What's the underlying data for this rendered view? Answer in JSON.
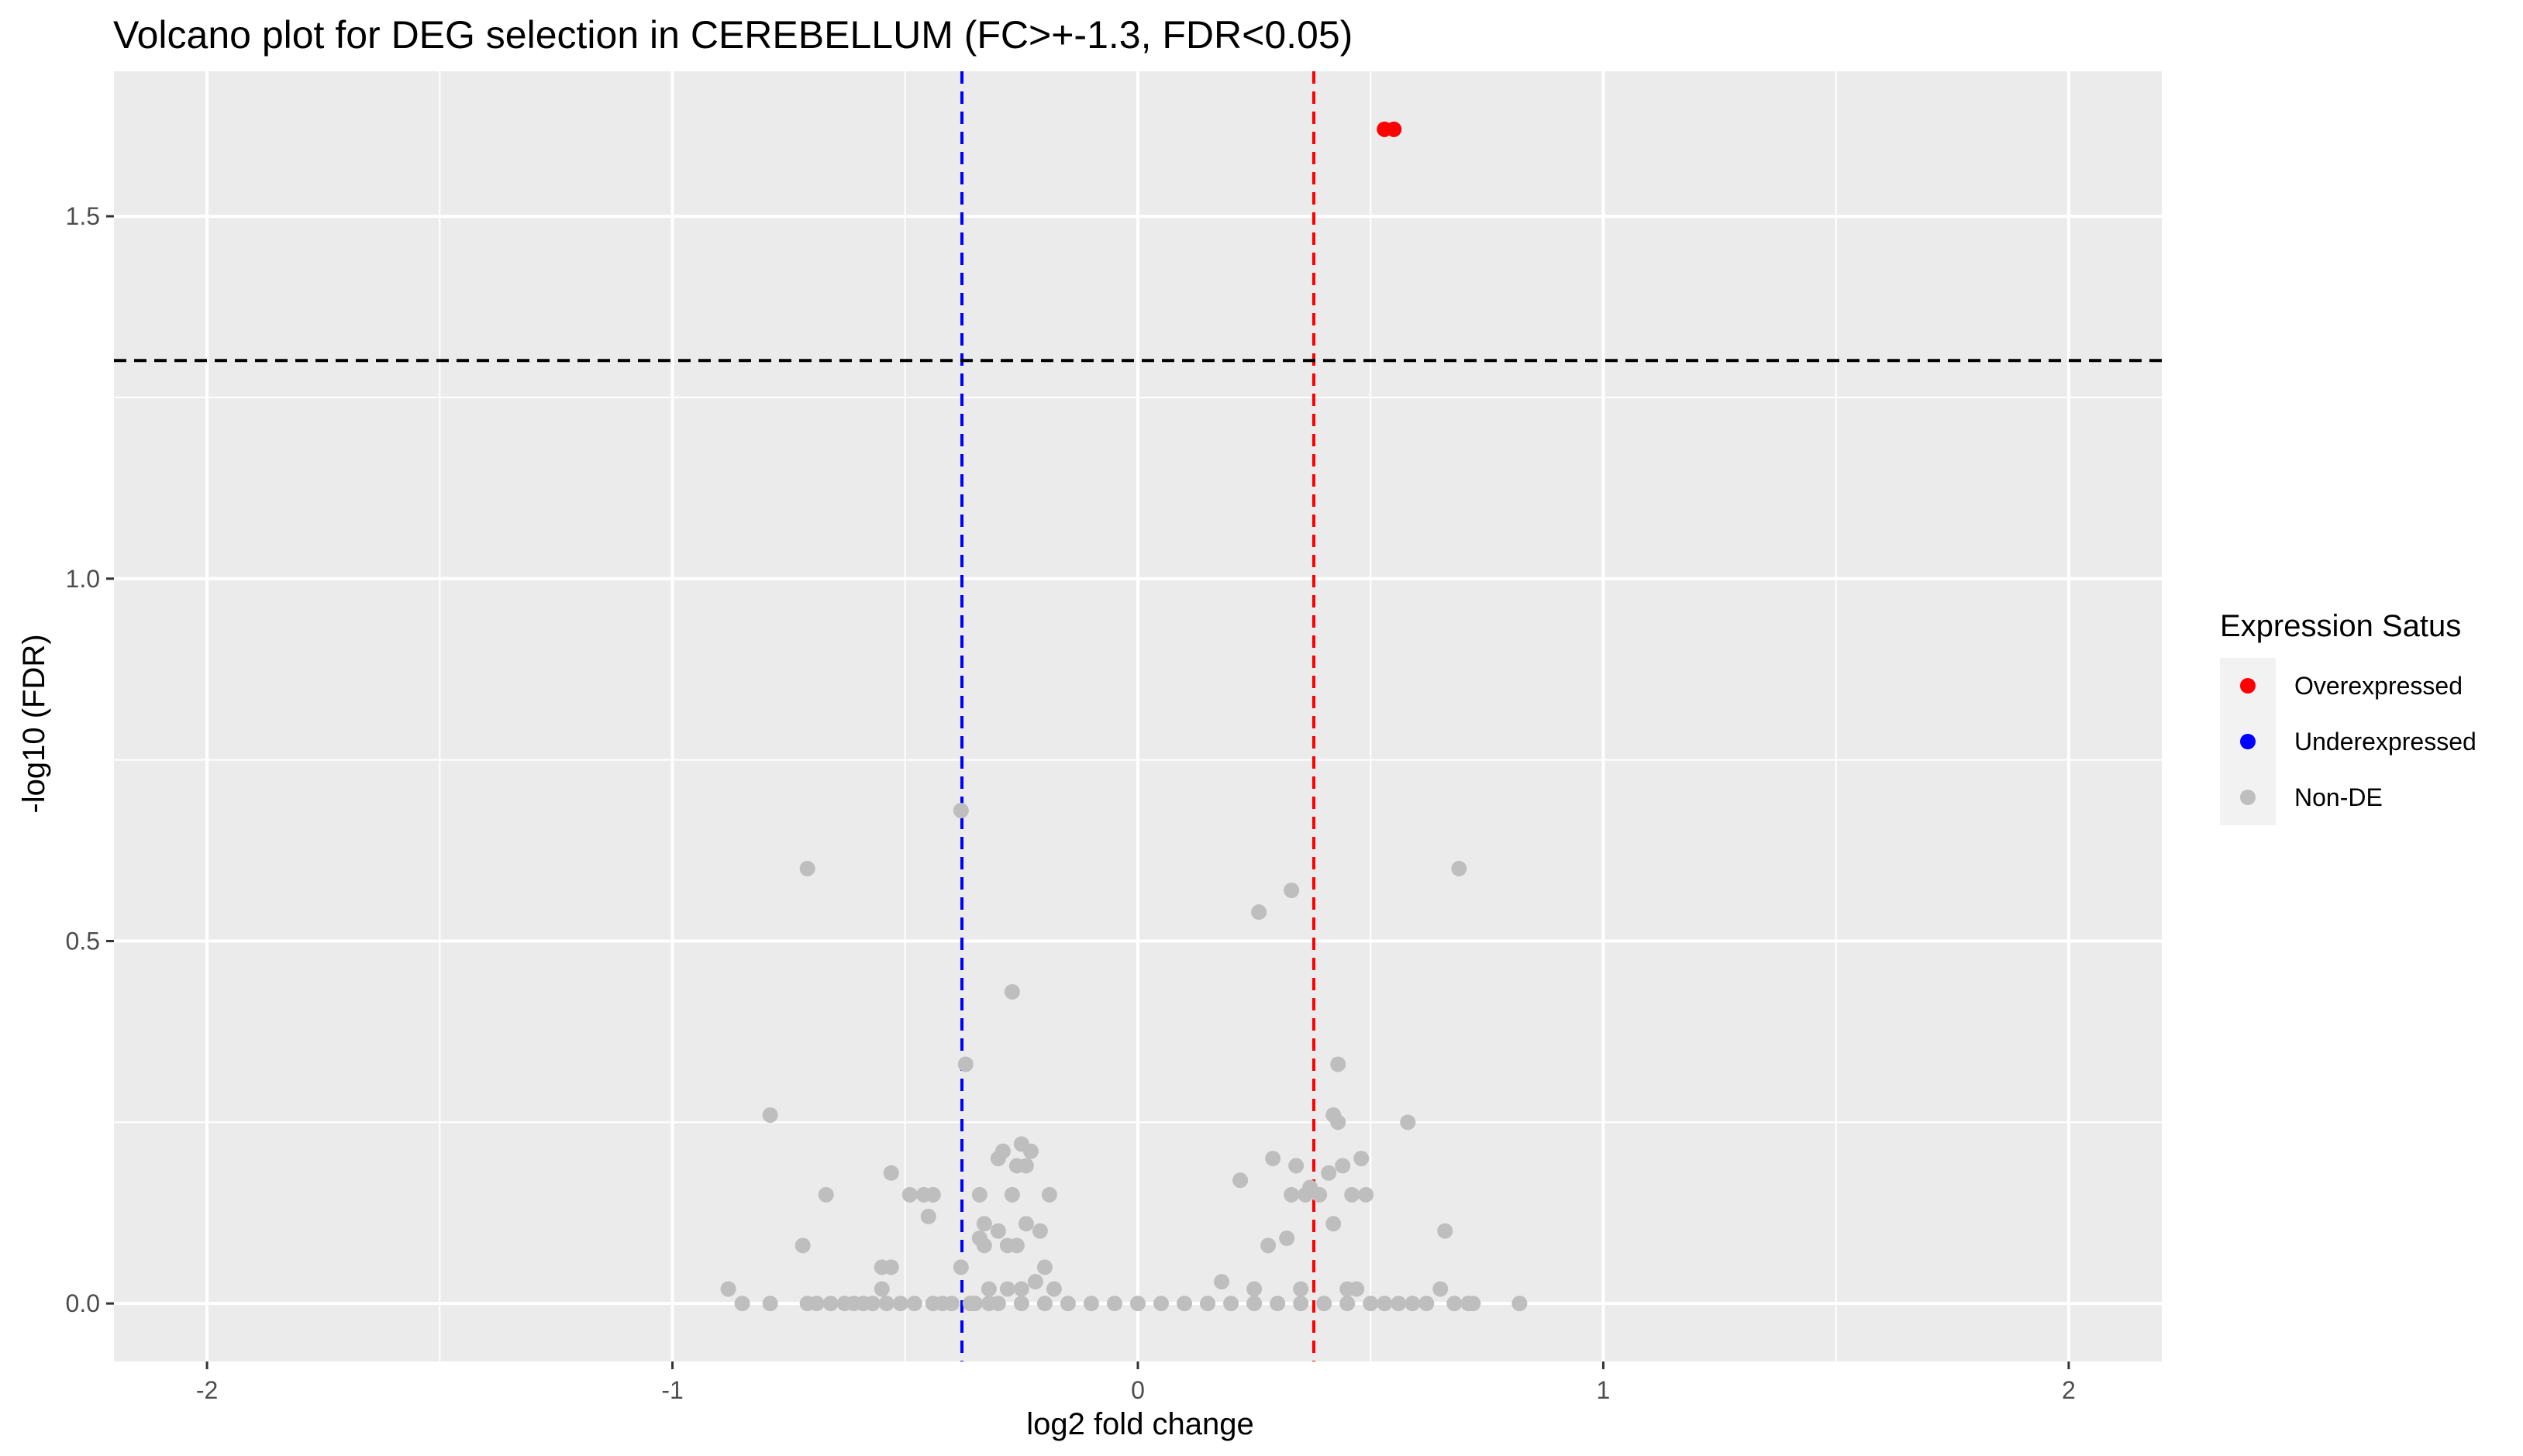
{
  "chart_data": {
    "type": "scatter",
    "title": "Volcano plot for DEG selection in CEREBELLUM (FC>+-1.3, FDR<0.05)",
    "xlabel": "log2 fold change",
    "ylabel": "-log10 (FDR)",
    "xlim": [
      -2.2,
      2.2
    ],
    "ylim": [
      -0.08,
      1.7
    ],
    "x_ticks": [
      -2,
      -1,
      0,
      1,
      2
    ],
    "x_tick_labels": [
      "-2",
      "-1",
      "0",
      "1",
      "2"
    ],
    "y_ticks": [
      0,
      0.5,
      1,
      1.5
    ],
    "y_tick_labels": [
      "0.0",
      "0.5",
      "1.0",
      "1.5"
    ],
    "grid": true,
    "legend_position": "right",
    "legend_title": "Expression Satus",
    "reference_lines": [
      {
        "orientation": "vertical",
        "value": -0.378,
        "color": "#0000ff",
        "style": "dashed"
      },
      {
        "orientation": "vertical",
        "value": 0.378,
        "color": "#ff0000",
        "style": "dashed"
      },
      {
        "orientation": "horizontal",
        "value": 1.301,
        "color": "#000000",
        "style": "dashed"
      }
    ],
    "series": [
      {
        "name": "Overexpressed",
        "color": "#ff0000",
        "points": [
          [
            0.53,
            1.62
          ],
          [
            0.55,
            1.62
          ]
        ]
      },
      {
        "name": "Underexpressed",
        "color": "#0000ff",
        "points": []
      },
      {
        "name": "Non-DE",
        "color": "#bebebe",
        "points": [
          [
            -0.88,
            0.02
          ],
          [
            -0.85,
            0
          ],
          [
            -0.79,
            0
          ],
          [
            -0.72,
            0.08
          ],
          [
            -0.71,
            0
          ],
          [
            -0.69,
            0
          ],
          [
            -0.67,
            0.15
          ],
          [
            -0.66,
            0
          ],
          [
            -0.63,
            0
          ],
          [
            -0.61,
            0
          ],
          [
            -0.59,
            0
          ],
          [
            -0.57,
            0
          ],
          [
            -0.55,
            0.05
          ],
          [
            -0.55,
            0.02
          ],
          [
            -0.54,
            0
          ],
          [
            -0.53,
            0.18
          ],
          [
            -0.53,
            0.05
          ],
          [
            -0.51,
            0
          ],
          [
            -0.49,
            0.15
          ],
          [
            -0.48,
            0
          ],
          [
            -0.46,
            0.15
          ],
          [
            -0.45,
            0.12
          ],
          [
            -0.44,
            0.15
          ],
          [
            -0.44,
            0
          ],
          [
            -0.42,
            0
          ],
          [
            -0.4,
            0
          ],
          [
            -0.38,
            0.05
          ],
          [
            -0.37,
            0.33
          ],
          [
            -0.36,
            0
          ],
          [
            -0.34,
            0.15
          ],
          [
            -0.34,
            0.09
          ],
          [
            -0.33,
            0.08
          ],
          [
            -0.33,
            0.11
          ],
          [
            -0.32,
            0.02
          ],
          [
            -0.32,
            0
          ],
          [
            -0.3,
            0.1
          ],
          [
            -0.3,
            0.2
          ],
          [
            -0.29,
            0.21
          ],
          [
            -0.28,
            0.08
          ],
          [
            -0.28,
            0.02
          ],
          [
            -0.27,
            0.43
          ],
          [
            -0.27,
            0.15
          ],
          [
            -0.26,
            0.08
          ],
          [
            -0.26,
            0.19
          ],
          [
            -0.25,
            0.22
          ],
          [
            -0.25,
            0.02
          ],
          [
            -0.24,
            0.11
          ],
          [
            -0.24,
            0.19
          ],
          [
            -0.23,
            0.21
          ],
          [
            -0.22,
            0.03
          ],
          [
            -0.21,
            0.1
          ],
          [
            -0.2,
            0.05
          ],
          [
            -0.19,
            0.15
          ],
          [
            -0.18,
            0.02
          ],
          [
            -0.38,
            0.68
          ],
          [
            -0.71,
            0.6
          ],
          [
            -0.79,
            0.26
          ],
          [
            -0.35,
            0
          ],
          [
            -0.3,
            0
          ],
          [
            -0.25,
            0
          ],
          [
            -0.2,
            0
          ],
          [
            -0.15,
            0
          ],
          [
            -0.1,
            0
          ],
          [
            -0.05,
            0
          ],
          [
            0,
            0
          ],
          [
            0.05,
            0
          ],
          [
            0.1,
            0
          ],
          [
            0.15,
            0
          ],
          [
            0.2,
            0
          ],
          [
            0.25,
            0
          ],
          [
            0.3,
            0
          ],
          [
            0.35,
            0
          ],
          [
            0.4,
            0
          ],
          [
            0.45,
            0
          ],
          [
            0.5,
            0
          ],
          [
            0.18,
            0.03
          ],
          [
            0.22,
            0.17
          ],
          [
            0.25,
            0.02
          ],
          [
            0.26,
            0.54
          ],
          [
            0.28,
            0.08
          ],
          [
            0.29,
            0.2
          ],
          [
            0.32,
            0.09
          ],
          [
            0.33,
            0.15
          ],
          [
            0.33,
            0.57
          ],
          [
            0.34,
            0.19
          ],
          [
            0.35,
            0.02
          ],
          [
            0.36,
            0.15
          ],
          [
            0.37,
            0.16
          ],
          [
            0.39,
            0.15
          ],
          [
            0.41,
            0.18
          ],
          [
            0.42,
            0.11
          ],
          [
            0.42,
            0.26
          ],
          [
            0.43,
            0.33
          ],
          [
            0.43,
            0.25
          ],
          [
            0.44,
            0.19
          ],
          [
            0.45,
            0.02
          ],
          [
            0.46,
            0.15
          ],
          [
            0.47,
            0.02
          ],
          [
            0.48,
            0.2
          ],
          [
            0.49,
            0.15
          ],
          [
            0.53,
            0
          ],
          [
            0.56,
            0
          ],
          [
            0.58,
            0.25
          ],
          [
            0.59,
            0
          ],
          [
            0.62,
            0
          ],
          [
            0.65,
            0.02
          ],
          [
            0.66,
            0.1
          ],
          [
            0.68,
            0
          ],
          [
            0.69,
            0.6
          ],
          [
            0.71,
            0
          ],
          [
            0.72,
            0
          ],
          [
            0.82,
            0
          ]
        ]
      }
    ]
  }
}
